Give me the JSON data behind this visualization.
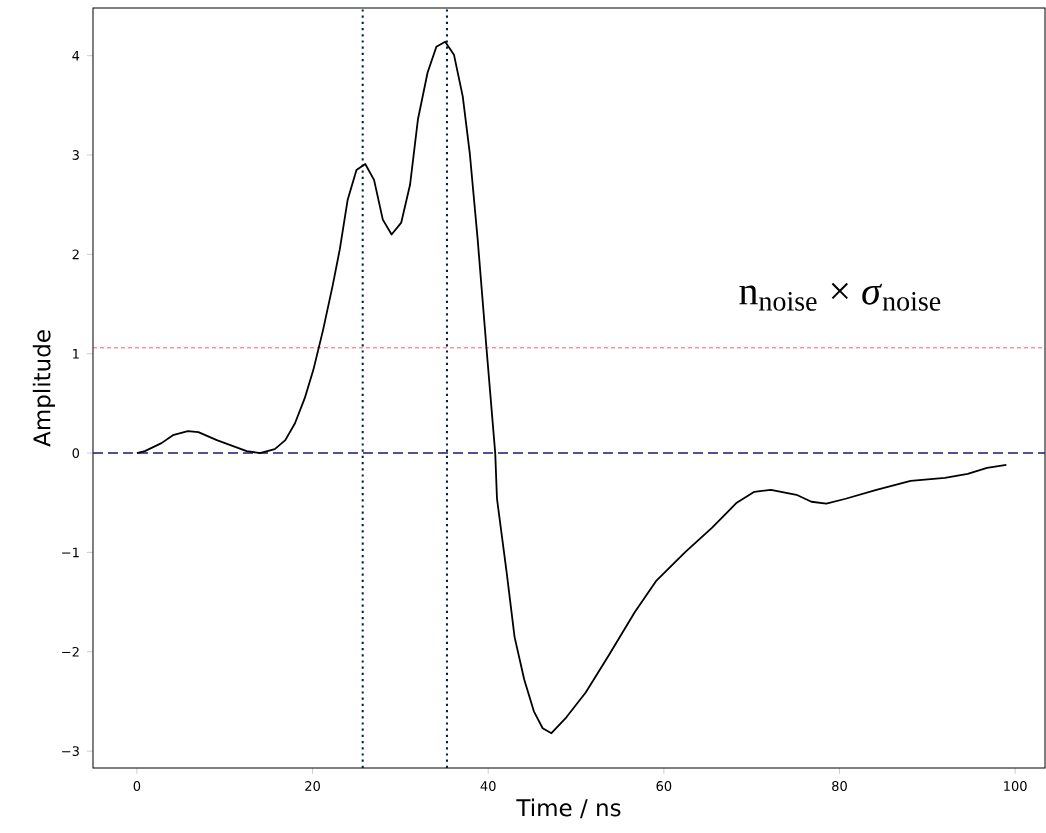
{
  "chart_data": {
    "type": "line",
    "xlabel": "Time / ns",
    "ylabel": "Amplitude",
    "x": [
      0,
      0.9,
      2.8,
      4.1,
      5.8,
      7.0,
      9.1,
      12.5,
      14.0,
      15.7,
      16.9,
      18.0,
      19.1,
      20.1,
      21.2,
      22.3,
      23.1,
      24.0,
      25.0,
      26.0,
      27.0,
      28.0,
      29.0,
      30.1,
      31.1,
      32.0,
      33.1,
      34.1,
      35.1,
      36.1,
      37.1,
      37.9,
      38.8,
      39.8,
      40.8,
      41.0,
      42.1,
      43.0,
      44.1,
      45.2,
      46.2,
      47.2,
      48.9,
      51.1,
      53.7,
      56.7,
      59.1,
      62.4,
      65.5,
      68.3,
      70.3,
      72.2,
      75.1,
      76.8,
      78.5,
      80.7,
      84.2,
      88.1,
      92.0,
      94.6,
      96.8,
      99.0
    ],
    "series": [
      {
        "color": "#000000",
        "values": [
          0,
          0.02,
          0.1,
          0.18,
          0.22,
          0.21,
          0.13,
          0.02,
          0.0,
          0.04,
          0.13,
          0.3,
          0.55,
          0.84,
          1.24,
          1.69,
          2.05,
          2.55,
          2.85,
          2.91,
          2.75,
          2.35,
          2.2,
          2.32,
          2.7,
          3.36,
          3.83,
          4.09,
          4.14,
          4.01,
          3.59,
          3.02,
          2.15,
          1.06,
          0.0,
          -0.46,
          -1.2,
          -1.85,
          -2.28,
          -2.6,
          -2.77,
          -2.82,
          -2.66,
          -2.41,
          -2.04,
          -1.6,
          -1.29,
          -1.0,
          -0.75,
          -0.5,
          -0.39,
          -0.37,
          -0.42,
          -0.49,
          -0.51,
          -0.46,
          -0.37,
          -0.28,
          -0.25,
          -0.21,
          -0.15,
          -0.12
        ]
      }
    ],
    "xlim": [
      -5,
      103.4
    ],
    "ylim": [
      -3.17,
      4.48
    ],
    "xticks": [
      0,
      20,
      40,
      60,
      80,
      100
    ],
    "yticks": [
      {
        "value": -3,
        "label": "−3"
      },
      {
        "value": -2,
        "label": "−2"
      },
      {
        "value": -1,
        "label": "−1"
      },
      0,
      1,
      2,
      3,
      4
    ],
    "ref_lines": [
      {
        "axis": "y",
        "value": 0,
        "color": "#191970",
        "line_style": "dashed"
      },
      {
        "axis": "y",
        "value": 1.06,
        "color": "#ff0000",
        "line_style": "dashed"
      },
      {
        "axis": "x",
        "value": 25.7,
        "color": "#00204a",
        "line_style": "dotted"
      },
      {
        "axis": "x",
        "value": 35.3,
        "color": "#00204a",
        "line_style": "dotted"
      }
    ],
    "annotations": [
      "n$_{noise}$ × *σ*$_{noise}$"
    ],
    "grid": false,
    "marker": "none",
    "line_style": "solid"
  }
}
